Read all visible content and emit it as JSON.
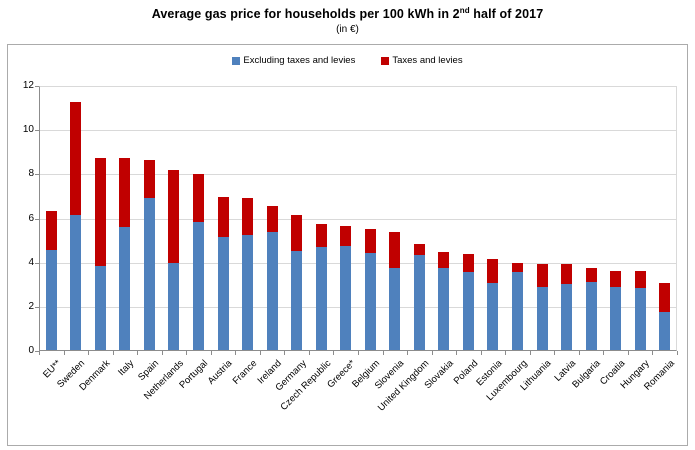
{
  "page": {
    "title_pre": "Average gas price for households per 100 kWh in 2",
    "title_sup": "nd",
    "title_post": " half of 2017",
    "subtitle": "(in €)"
  },
  "chart_data": {
    "type": "bar",
    "stacked": true,
    "title": "Average gas price for households per 100 kWh in 2nd half of 2017",
    "subtitle": "(in €)",
    "xlabel": "",
    "ylabel": "",
    "ylim": [
      0,
      12
    ],
    "yticks": [
      0,
      2,
      4,
      6,
      8,
      10,
      12
    ],
    "grid": true,
    "legend_position": "top-center",
    "categories": [
      "EU**",
      "Sweden",
      "Denmark",
      "Italy",
      "Spain",
      "Netherlands",
      "Portugal",
      "Austria",
      "France",
      "Ireland",
      "Germany",
      "Czech Republic",
      "Greece*",
      "Belgium",
      "Slovenia",
      "United Kingdom",
      "Slovakia",
      "Poland",
      "Estonia",
      "Luxembourg",
      "Lithuania",
      "Latvia",
      "Bulgaria",
      "Croatia",
      "Hungary",
      "Romania"
    ],
    "series": [
      {
        "name": "Excluding taxes and levies",
        "color": "#4F81BD",
        "values": [
          4.55,
          6.1,
          3.8,
          5.55,
          6.9,
          3.95,
          5.8,
          5.1,
          5.2,
          5.35,
          4.5,
          4.65,
          4.7,
          4.4,
          3.7,
          4.3,
          3.7,
          3.55,
          3.05,
          3.55,
          2.85,
          3.0,
          3.1,
          2.85,
          2.8,
          1.7
        ]
      },
      {
        "name": "Taxes and levies",
        "color": "#C00000",
        "values": [
          1.75,
          5.15,
          4.9,
          3.15,
          1.7,
          4.2,
          2.15,
          1.85,
          1.7,
          1.15,
          1.6,
          1.05,
          0.9,
          1.1,
          1.65,
          0.5,
          0.75,
          0.8,
          1.05,
          0.4,
          1.05,
          0.9,
          0.6,
          0.75,
          0.8,
          1.35
        ]
      }
    ],
    "totals": [
      6.3,
      11.25,
      8.7,
      8.7,
      8.6,
      8.15,
      7.95,
      6.95,
      6.9,
      6.5,
      6.1,
      5.7,
      5.6,
      5.5,
      5.35,
      4.8,
      4.45,
      4.35,
      4.1,
      3.95,
      3.9,
      3.9,
      3.7,
      3.6,
      3.6,
      3.05
    ]
  }
}
